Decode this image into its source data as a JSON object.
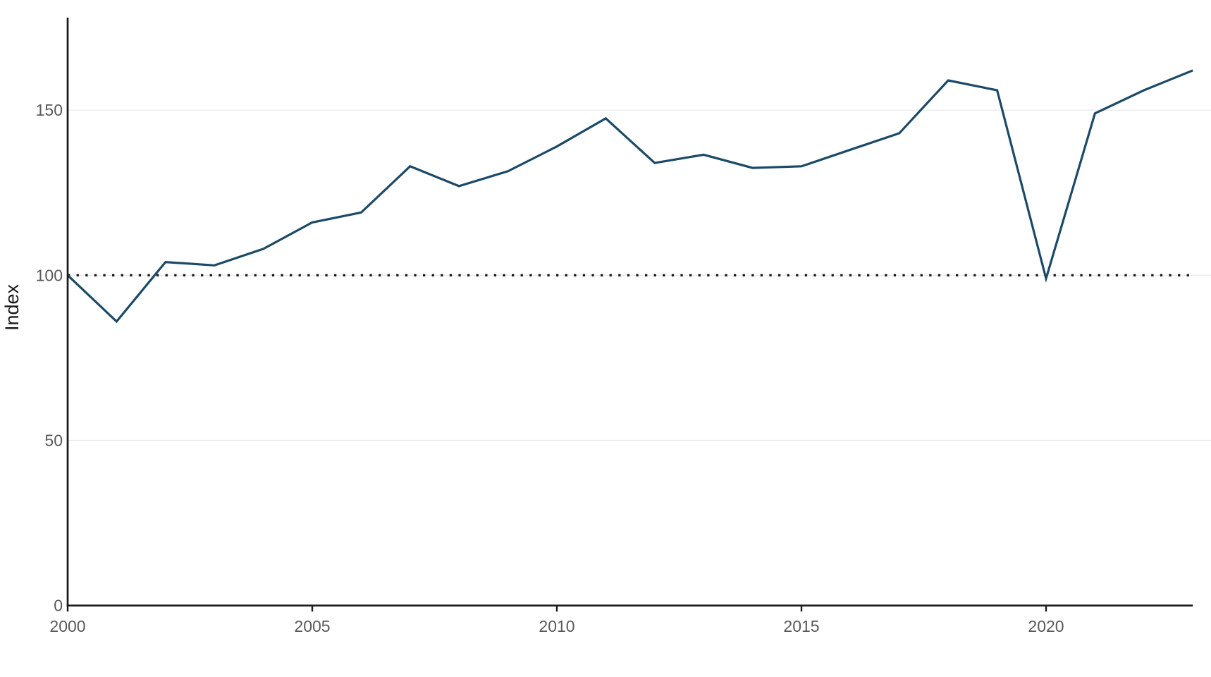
{
  "chart_data": {
    "type": "line",
    "title": "",
    "xlabel": "",
    "ylabel": "Index",
    "x": [
      2000,
      2001,
      2002,
      2003,
      2004,
      2005,
      2006,
      2007,
      2008,
      2009,
      2010,
      2011,
      2012,
      2013,
      2014,
      2015,
      2016,
      2017,
      2018,
      2019,
      2020,
      2021,
      2022,
      2023
    ],
    "series": [
      {
        "name": "Index",
        "color": "#1b4a68",
        "values": [
          100,
          86,
          104,
          103,
          108,
          116,
          119,
          133,
          127,
          131.5,
          139,
          147.5,
          134,
          136.5,
          132.5,
          133,
          138,
          143,
          159,
          156,
          99,
          149,
          156,
          162
        ]
      }
    ],
    "x_ticks": [
      2000,
      2005,
      2010,
      2015,
      2020
    ],
    "y_ticks": [
      0,
      50,
      100,
      150
    ],
    "xlim": [
      2000,
      2023
    ],
    "ylim": [
      0,
      178
    ],
    "grid": "horizontal",
    "grid_color": "#ebebeb",
    "axis_color": "#1a1a1a",
    "tick_label_color": "#595959",
    "background_color": "#ffffff",
    "reference_line": {
      "value": 100,
      "style": "dotted",
      "color": "#1a1a1a"
    },
    "legend_position": "none"
  }
}
